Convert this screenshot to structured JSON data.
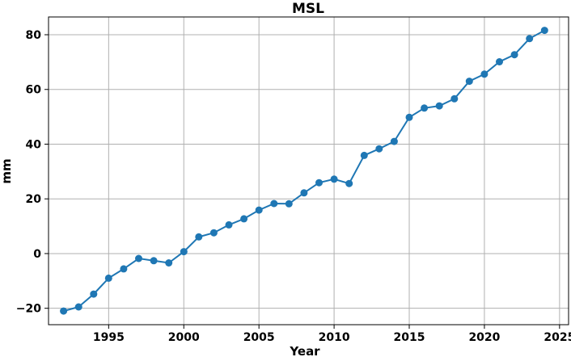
{
  "chart_data": {
    "type": "line",
    "title": "MSL",
    "xlabel": "Year",
    "ylabel": "mm",
    "xlim": [
      1991,
      2025.6
    ],
    "ylim": [
      -26,
      86.5
    ],
    "xticks": [
      1995,
      2000,
      2005,
      2010,
      2015,
      2020,
      2025
    ],
    "yticks": [
      -20,
      0,
      20,
      40,
      60,
      80
    ],
    "ytick_labels": [
      "−20",
      "0",
      "20",
      "40",
      "60",
      "80"
    ],
    "grid": true,
    "color": "#1f77b4",
    "series": [
      {
        "x": [
          1992,
          1993,
          1994,
          1995,
          1996,
          1997,
          1998,
          1999,
          2000,
          2001,
          2002,
          2003,
          2004,
          2005,
          2006,
          2007,
          2008,
          2009,
          2010,
          2011,
          2012,
          2013,
          2014,
          2015,
          2016,
          2017,
          2018,
          2019,
          2020,
          2021,
          2022,
          2023,
          2024
        ],
        "y": [
          -21.0,
          -19.5,
          -14.8,
          -9.0,
          -5.6,
          -1.8,
          -2.6,
          -3.4,
          0.7,
          6.1,
          7.6,
          10.5,
          12.7,
          15.9,
          18.3,
          18.2,
          22.2,
          25.9,
          27.2,
          25.6,
          35.9,
          38.3,
          41.0,
          49.8,
          53.2,
          54.0,
          56.6,
          63.0,
          65.6,
          70.1,
          72.7,
          78.6,
          81.6
        ]
      }
    ]
  }
}
